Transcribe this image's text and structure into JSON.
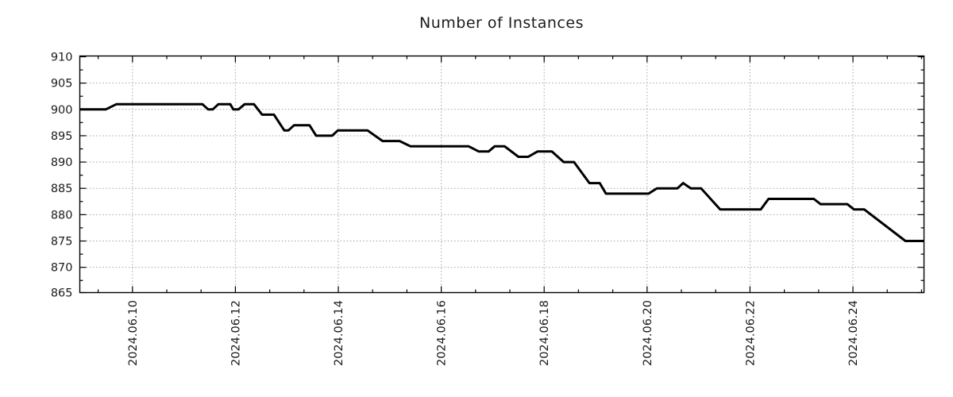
{
  "chart_data": {
    "type": "line",
    "title": "Number of Instances",
    "x_unit": "days since 2024-06-09 00:00",
    "x_range": [
      -0.031,
      16.38
    ],
    "y_range": [
      865.2,
      910.15
    ],
    "x_ticks_major": [
      {
        "t": 1,
        "label": "2024.06.10"
      },
      {
        "t": 3,
        "label": "2024.06.12"
      },
      {
        "t": 5,
        "label": "2024.06.14"
      },
      {
        "t": 7,
        "label": "2024.06.16"
      },
      {
        "t": 9,
        "label": "2024.06.18"
      },
      {
        "t": 11,
        "label": "2024.06.20"
      },
      {
        "t": 13,
        "label": "2024.06.22"
      },
      {
        "t": 15,
        "label": "2024.06.24"
      }
    ],
    "x_minor_step": 0.66667,
    "y_ticks_major": [
      865,
      870,
      875,
      880,
      885,
      890,
      895,
      900,
      905,
      910
    ],
    "y_minor_step": 2.5,
    "grid": "dotted-major",
    "legend": "none",
    "series": [
      {
        "name": "instances",
        "color": "#000000",
        "points": [
          [
            -0.03,
            900
          ],
          [
            0.48,
            900
          ],
          [
            0.69,
            901
          ],
          [
            2.36,
            901
          ],
          [
            2.47,
            900
          ],
          [
            2.56,
            900
          ],
          [
            2.67,
            901
          ],
          [
            2.9,
            901
          ],
          [
            2.96,
            900
          ],
          [
            3.06,
            900
          ],
          [
            3.18,
            901
          ],
          [
            3.36,
            901
          ],
          [
            3.52,
            899
          ],
          [
            3.75,
            899
          ],
          [
            3.95,
            896
          ],
          [
            4.03,
            896
          ],
          [
            4.14,
            897
          ],
          [
            4.44,
            897
          ],
          [
            4.57,
            895
          ],
          [
            4.88,
            895
          ],
          [
            4.99,
            896
          ],
          [
            5.57,
            896
          ],
          [
            5.86,
            894
          ],
          [
            6.19,
            894
          ],
          [
            6.4,
            893
          ],
          [
            7.53,
            893
          ],
          [
            7.73,
            892
          ],
          [
            7.92,
            892
          ],
          [
            8.04,
            893
          ],
          [
            8.23,
            893
          ],
          [
            8.5,
            891
          ],
          [
            8.69,
            891
          ],
          [
            8.87,
            892
          ],
          [
            9.15,
            892
          ],
          [
            9.38,
            890
          ],
          [
            9.58,
            890
          ],
          [
            9.88,
            886
          ],
          [
            10.08,
            886
          ],
          [
            10.2,
            884
          ],
          [
            11.03,
            884
          ],
          [
            11.19,
            885
          ],
          [
            11.59,
            885
          ],
          [
            11.7,
            886
          ],
          [
            11.85,
            885
          ],
          [
            12.05,
            885
          ],
          [
            12.42,
            881
          ],
          [
            13.21,
            881
          ],
          [
            13.36,
            883
          ],
          [
            14.24,
            883
          ],
          [
            14.37,
            882
          ],
          [
            14.89,
            882
          ],
          [
            15.02,
            881
          ],
          [
            15.22,
            881
          ],
          [
            16.02,
            875
          ],
          [
            16.38,
            875
          ]
        ]
      }
    ],
    "colors": {
      "line": "#000000",
      "grid": "#a3a3a3",
      "frame": "#000000",
      "text": "#1c1c1c",
      "background": "#ffffff"
    }
  }
}
